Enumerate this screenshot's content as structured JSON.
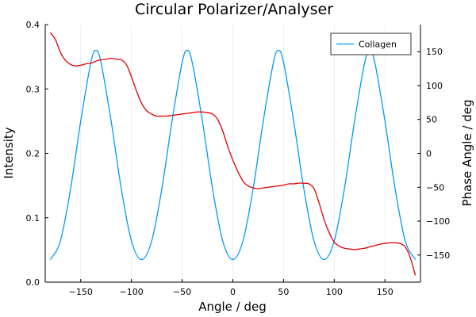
{
  "chart_data": {
    "type": "line",
    "title": "Circular Polarizer/Analyser",
    "xlabel": "Angle / deg",
    "ylabel": "Intensity",
    "y2label": "Phase Angle / deg",
    "xlim": [
      -185,
      185
    ],
    "ylim": [
      0,
      0.4
    ],
    "y2lim": [
      -190,
      190
    ],
    "xticks": [
      -150,
      -100,
      -50,
      0,
      50,
      100,
      150
    ],
    "xtick_labels": [
      "−150",
      "−100",
      "−50",
      "0",
      "50",
      "100",
      "150"
    ],
    "yticks": [
      0,
      0.1,
      0.2,
      0.3,
      0.4
    ],
    "ytick_labels": [
      "0.0",
      "0.1",
      "0.2",
      "0.3",
      "0.4"
    ],
    "y2ticks": [
      -150,
      -100,
      -50,
      0,
      50,
      100,
      150
    ],
    "y2tick_labels": [
      "−150",
      "−100",
      "−50",
      "0",
      "50",
      "100",
      "150"
    ],
    "grid": true,
    "legend_position": "top-right",
    "series": [
      {
        "name": "Collagen",
        "axis": "left",
        "color": "#009AFA",
        "x": [
          -180,
          -170,
          -160,
          -150,
          -140,
          -135,
          -130,
          -120,
          -110,
          -100,
          -90,
          -80,
          -70,
          -60,
          -50,
          -45,
          -40,
          -30,
          -20,
          -10,
          0,
          10,
          20,
          30,
          40,
          45,
          50,
          60,
          70,
          80,
          90,
          100,
          110,
          120,
          130,
          135,
          140,
          150,
          160,
          170,
          180
        ],
        "y": [
          0.035,
          0.064,
          0.145,
          0.25,
          0.341,
          0.36,
          0.341,
          0.25,
          0.145,
          0.064,
          0.035,
          0.064,
          0.145,
          0.25,
          0.341,
          0.36,
          0.341,
          0.25,
          0.145,
          0.064,
          0.035,
          0.064,
          0.145,
          0.25,
          0.341,
          0.36,
          0.341,
          0.25,
          0.145,
          0.064,
          0.035,
          0.064,
          0.145,
          0.25,
          0.341,
          0.36,
          0.341,
          0.25,
          0.145,
          0.064,
          0.035
        ]
      },
      {
        "name": "",
        "axis": "right",
        "color": "#E00000",
        "x": [
          -180,
          -175,
          -170,
          -165,
          -160,
          -155,
          -150,
          -145,
          -140,
          -135,
          -130,
          -125,
          -120,
          -115,
          -110,
          -105,
          -100,
          -95,
          -90,
          -85,
          -80,
          -75,
          -70,
          -65,
          -60,
          -55,
          -50,
          -45,
          -40,
          -35,
          -30,
          -25,
          -20,
          -15,
          -10,
          -5,
          0,
          5,
          10,
          15,
          20,
          25,
          30,
          35,
          40,
          45,
          50,
          55,
          60,
          65,
          70,
          75,
          80,
          85,
          90,
          95,
          100,
          105,
          110,
          115,
          120,
          125,
          130,
          135,
          140,
          145,
          150,
          155,
          160,
          165,
          170,
          175,
          180
        ],
        "y": [
          178,
          168,
          149,
          137,
          131,
          129,
          130,
          132,
          133,
          136,
          138,
          139,
          140,
          139,
          138,
          131,
          113,
          92,
          74,
          63,
          58,
          55,
          55,
          55,
          56,
          57,
          58,
          59,
          60,
          61,
          61,
          60,
          58,
          50,
          33,
          10,
          -10,
          -27,
          -41,
          -48,
          -51,
          -52,
          -51,
          -50,
          -49,
          -48,
          -47,
          -45,
          -45,
          -44,
          -44,
          -45,
          -52,
          -73,
          -98,
          -117,
          -131,
          -137,
          -140,
          -141,
          -142,
          -141,
          -140,
          -138,
          -136,
          -134,
          -133,
          -132,
          -132,
          -133,
          -138,
          -154,
          -180
        ]
      }
    ]
  }
}
